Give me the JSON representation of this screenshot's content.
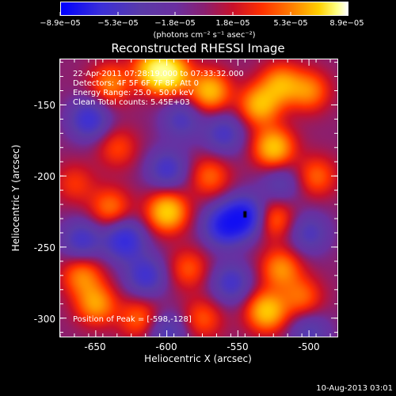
{
  "colorbar": {
    "labels": [
      "−8.9e−05",
      "−5.3e−05",
      "−1.8e−05",
      "1.8e−05",
      "5.3e−05",
      "8.9e−05"
    ],
    "unit": "(photons cm⁻² s⁻¹ asec⁻²)"
  },
  "chart_data": {
    "type": "heatmap",
    "title": "Reconstructed RHESSI Image",
    "xlabel": "Heliocentric X (arcsec)",
    "ylabel": "Heliocentric Y (arcsec)",
    "xlim": [
      -675,
      -480
    ],
    "ylim": [
      -313,
      -118
    ],
    "x_ticks": [
      -650,
      -600,
      -550,
      -500
    ],
    "y_ticks": [
      -150,
      -200,
      -250,
      -300
    ],
    "color_range": [
      -8.9e-05,
      8.9e-05
    ],
    "annotations": [
      "22-Apr-2011 07:28:19.000 to 07:33:32.000",
      "Detectors: 4F 5F 6F 7F 8F, Att 0",
      "Energy Range: 25.0 - 50.0 keV",
      "Clean    Total counts: 5.45E+03"
    ],
    "peak_label": "Position of Peak = [-598,-128]",
    "peak_position": [
      -598,
      -128
    ],
    "blobs": [
      {
        "x": -640,
        "y": -135,
        "v": 0.6
      },
      {
        "x": -610,
        "y": -125,
        "v": 0.8
      },
      {
        "x": -598,
        "y": -128,
        "v": 1.0
      },
      {
        "x": -570,
        "y": -140,
        "v": 0.85
      },
      {
        "x": -535,
        "y": -150,
        "v": 0.8
      },
      {
        "x": -520,
        "y": -135,
        "v": 0.7
      },
      {
        "x": -500,
        "y": -140,
        "v": 0.6
      },
      {
        "x": -525,
        "y": -180,
        "v": 0.9
      },
      {
        "x": -495,
        "y": -200,
        "v": 0.5
      },
      {
        "x": -635,
        "y": -180,
        "v": 0.4
      },
      {
        "x": -665,
        "y": -205,
        "v": 0.35
      },
      {
        "x": -640,
        "y": -222,
        "v": 0.55
      },
      {
        "x": -600,
        "y": -225,
        "v": 0.95
      },
      {
        "x": -570,
        "y": -200,
        "v": 0.5
      },
      {
        "x": -585,
        "y": -265,
        "v": 0.45
      },
      {
        "x": -525,
        "y": -230,
        "v": 0.55
      },
      {
        "x": -520,
        "y": -265,
        "v": 0.65
      },
      {
        "x": -505,
        "y": -285,
        "v": 0.5
      },
      {
        "x": -530,
        "y": -295,
        "v": 0.9
      },
      {
        "x": -660,
        "y": -270,
        "v": 0.6
      },
      {
        "x": -650,
        "y": -290,
        "v": 0.7
      },
      {
        "x": -620,
        "y": -300,
        "v": 0.5
      },
      {
        "x": -575,
        "y": -300,
        "v": 0.45
      },
      {
        "x": -560,
        "y": -235,
        "v": -0.9
      },
      {
        "x": -545,
        "y": -228,
        "v": -1.0
      },
      {
        "x": -630,
        "y": -245,
        "v": -0.8
      },
      {
        "x": -660,
        "y": -245,
        "v": -0.6
      },
      {
        "x": -600,
        "y": -195,
        "v": -0.6
      },
      {
        "x": -655,
        "y": -160,
        "v": -0.7
      },
      {
        "x": -590,
        "y": -160,
        "v": -0.5
      },
      {
        "x": -560,
        "y": -170,
        "v": -0.55
      },
      {
        "x": -500,
        "y": -240,
        "v": -0.5
      },
      {
        "x": -615,
        "y": -270,
        "v": -0.65
      },
      {
        "x": -555,
        "y": -275,
        "v": -0.6
      },
      {
        "x": -500,
        "y": -310,
        "v": -0.45
      },
      {
        "x": -600,
        "y": -310,
        "v": -0.5
      },
      {
        "x": -520,
        "y": -205,
        "v": -0.4
      }
    ]
  },
  "timestamp": "10-Aug-2013 03:01"
}
